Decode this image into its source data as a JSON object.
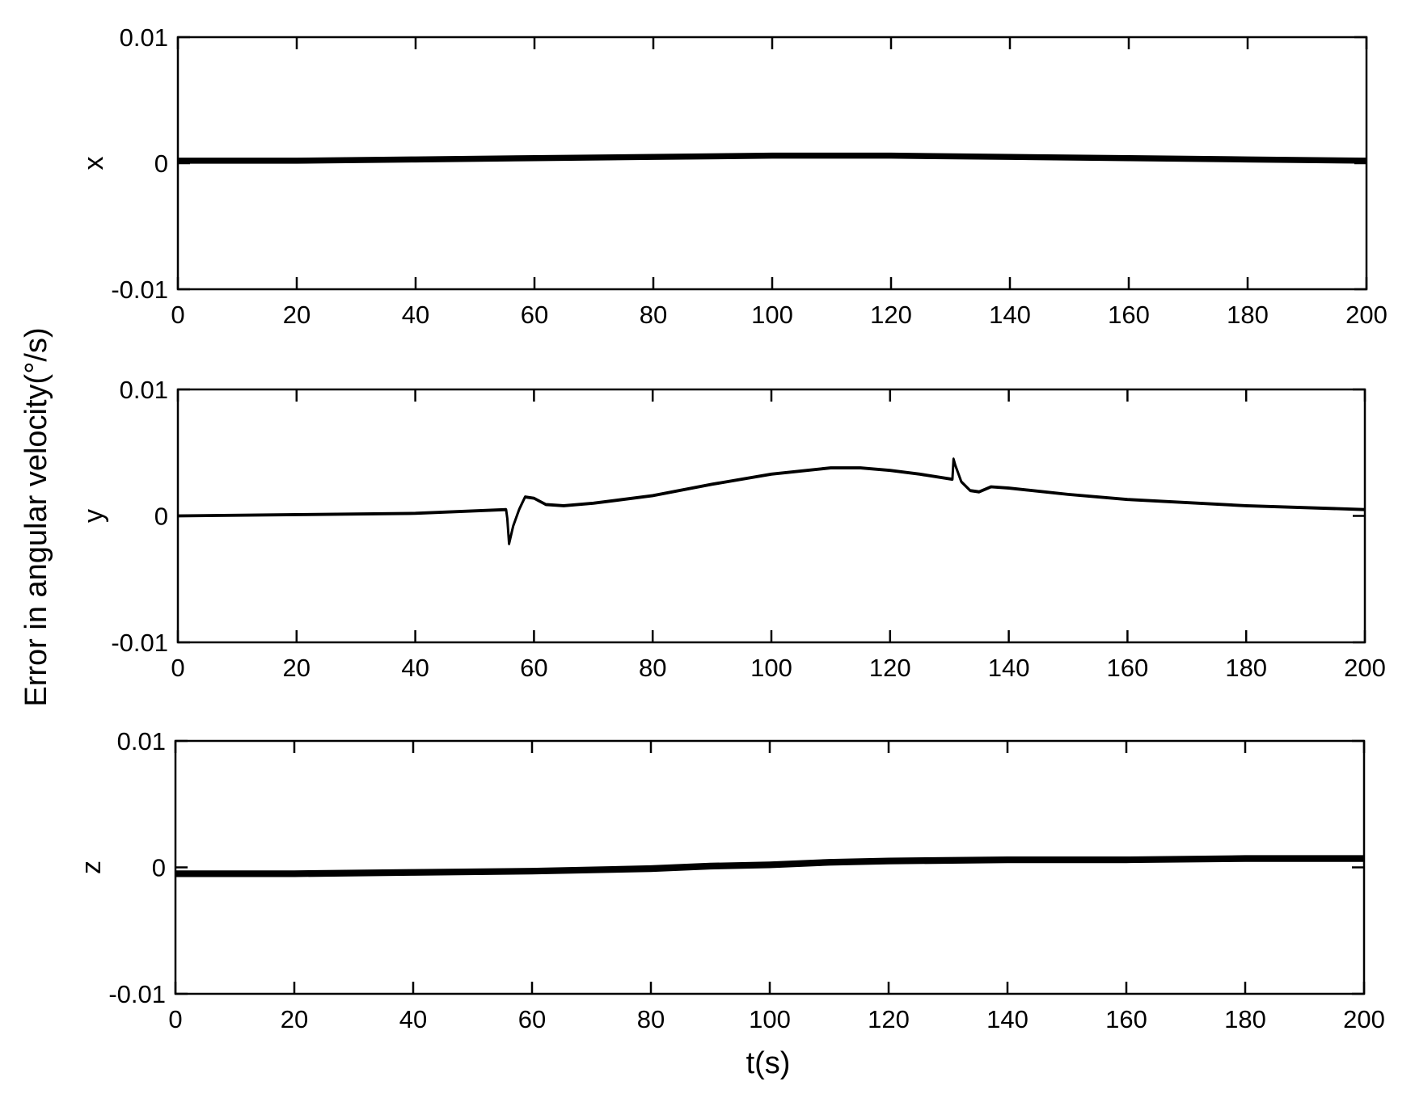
{
  "figure": {
    "ylabel": "Error in angular velocity(°/s)",
    "xlabel": "t(s)"
  },
  "chart_data": [
    {
      "type": "line",
      "ylabel": "x",
      "xlim": [
        0,
        200
      ],
      "ylim": [
        -0.01,
        0.01
      ],
      "xticks": [
        0,
        20,
        40,
        60,
        80,
        100,
        120,
        140,
        160,
        180,
        200
      ],
      "yticks": [
        -0.01,
        0,
        0.01
      ],
      "ytick_labels": [
        "-0.01",
        "0",
        "0.01"
      ],
      "band_width": 0.00035,
      "series": [
        {
          "x": [
            0,
            20,
            40,
            60,
            80,
            100,
            120,
            140,
            160,
            180,
            200
          ],
          "y": [
            0.0002,
            0.0002,
            0.0003,
            0.0004,
            0.0005,
            0.0006,
            0.0006,
            0.0005,
            0.0004,
            0.0003,
            0.0002
          ]
        }
      ]
    },
    {
      "type": "line",
      "ylabel": "y",
      "xlim": [
        0,
        200
      ],
      "ylim": [
        -0.01,
        0.01
      ],
      "xticks": [
        0,
        20,
        40,
        60,
        80,
        100,
        120,
        140,
        160,
        180,
        200
      ],
      "yticks": [
        -0.01,
        0,
        0.01
      ],
      "ytick_labels": [
        "-0.01",
        "0",
        "0.01"
      ],
      "band_width": 0.00012,
      "series": [
        {
          "x": [
            0,
            20,
            40,
            55.3,
            55.5,
            55.8,
            56.5,
            57.5,
            58.5,
            60,
            62,
            65,
            70,
            80,
            90,
            100,
            110,
            115,
            120,
            125,
            130.5,
            130.7,
            131,
            132,
            133.5,
            135,
            137,
            140,
            150,
            160,
            180,
            200
          ],
          "y": [
            0.0,
            0.0001,
            0.0002,
            0.0005,
            -0.0002,
            -0.0022,
            -0.0008,
            0.0005,
            0.0015,
            0.0014,
            0.0009,
            0.0008,
            0.001,
            0.0016,
            0.0025,
            0.0033,
            0.0038,
            0.0038,
            0.0036,
            0.0033,
            0.0029,
            0.0045,
            0.004,
            0.0027,
            0.002,
            0.0019,
            0.0023,
            0.0022,
            0.0017,
            0.0013,
            0.0008,
            0.0005
          ]
        }
      ]
    },
    {
      "type": "line",
      "ylabel": "z",
      "xlim": [
        0,
        200
      ],
      "ylim": [
        -0.01,
        0.01
      ],
      "xticks": [
        0,
        20,
        40,
        60,
        80,
        100,
        120,
        140,
        160,
        180,
        200
      ],
      "yticks": [
        -0.01,
        0,
        0.01
      ],
      "ytick_labels": [
        "-0.01",
        "0",
        "0.01"
      ],
      "band_width": 0.0004,
      "series": [
        {
          "x": [
            0,
            20,
            40,
            60,
            80,
            90,
            100,
            110,
            120,
            140,
            160,
            180,
            200
          ],
          "y": [
            -0.0005,
            -0.0005,
            -0.0004,
            -0.0003,
            -0.0001,
            0.0001,
            0.0002,
            0.0004,
            0.0005,
            0.0006,
            0.0006,
            0.0007,
            0.0007
          ]
        }
      ]
    }
  ]
}
